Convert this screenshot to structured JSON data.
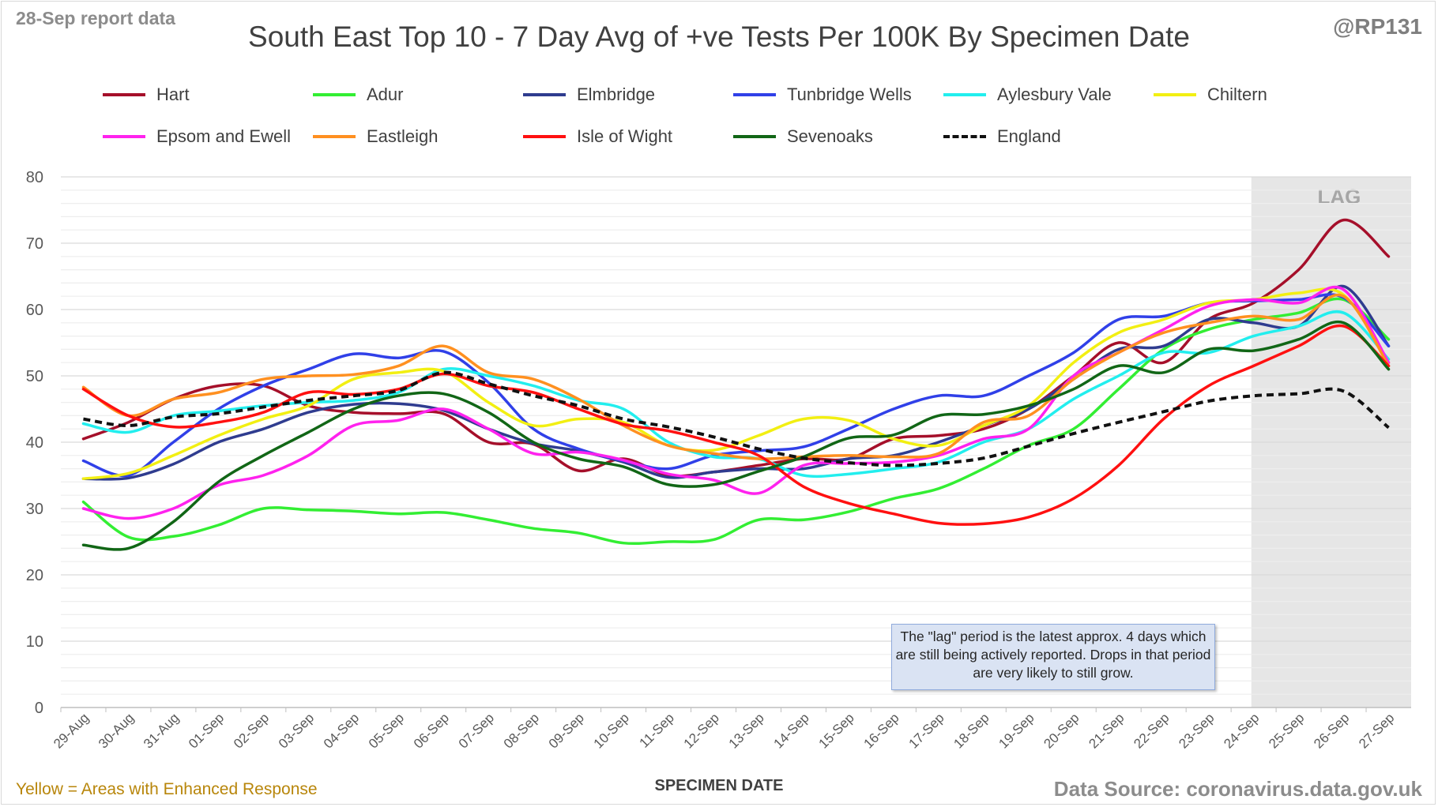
{
  "report_label": "28-Sep report data",
  "handle": "@RP131",
  "footnote": "Yellow = Areas with Enhanced Response",
  "source": "Data Source: coronavirus.data.gov.uk",
  "note": "The \"lag\" period is the latest approx. 4 days which are still being actively reported.  Drops in that period are very likely to still grow.",
  "chart_data": {
    "type": "line",
    "title": "South East Top 10 - 7 Day Avg of +ve Tests Per 100K By Specimen Date",
    "xlabel": "SPECIMEN DATE",
    "ylabel": "",
    "ylim": [
      0,
      80
    ],
    "yticks": [
      0,
      10,
      20,
      30,
      40,
      50,
      60,
      70,
      80
    ],
    "grid": true,
    "legend_placement": "top",
    "lag_label": "LAG",
    "lag_range": [
      "24-Sep",
      "27-Sep"
    ],
    "categories": [
      "29-Aug",
      "30-Aug",
      "31-Aug",
      "01-Sep",
      "02-Sep",
      "03-Sep",
      "04-Sep",
      "05-Sep",
      "06-Sep",
      "07-Sep",
      "08-Sep",
      "09-Sep",
      "10-Sep",
      "11-Sep",
      "12-Sep",
      "13-Sep",
      "14-Sep",
      "15-Sep",
      "16-Sep",
      "17-Sep",
      "18-Sep",
      "19-Sep",
      "20-Sep",
      "21-Sep",
      "22-Sep",
      "23-Sep",
      "24-Sep",
      "25-Sep",
      "26-Sep",
      "27-Sep"
    ],
    "series": [
      {
        "name": "Hart",
        "color": "#a50f2a",
        "dash": false,
        "values": [
          40.5,
          43,
          46.5,
          48.5,
          48.5,
          45.5,
          44.5,
          44.3,
          44.3,
          40,
          39.7,
          35.7,
          37.5,
          35,
          35.5,
          36.5,
          37.5,
          37.5,
          40.5,
          41,
          42,
          45,
          50,
          55,
          52,
          58.5,
          61,
          66,
          73.5,
          68
        ]
      },
      {
        "name": "Adur",
        "color": "#33ee33",
        "dash": false,
        "values": [
          31,
          25.7,
          25.8,
          27.5,
          30,
          29.8,
          29.6,
          29.2,
          29.4,
          28.3,
          27,
          26.3,
          24.8,
          25,
          25.3,
          28.3,
          28.3,
          29.5,
          31.5,
          33,
          36,
          39.5,
          42,
          48,
          54,
          57,
          58.5,
          59.5,
          61.5,
          55.5
        ]
      },
      {
        "name": "Elmbridge",
        "color": "#2f3c8f",
        "dash": false,
        "values": [
          34.5,
          34.6,
          36.7,
          40,
          42,
          44.5,
          45.7,
          45.8,
          44.8,
          42,
          39.8,
          38.7,
          37,
          34.7,
          35.5,
          36,
          36,
          37.5,
          38,
          40,
          42.5,
          45,
          49.5,
          54,
          54.5,
          58.5,
          58,
          57.5,
          63.5,
          54.5
        ]
      },
      {
        "name": "Tunbridge Wells",
        "color": "#3040e8",
        "dash": false,
        "values": [
          37.2,
          35,
          40,
          45,
          48.5,
          51,
          53.3,
          52.7,
          53.7,
          49,
          42,
          39,
          37.2,
          36,
          38,
          38.7,
          39.3,
          42,
          45,
          47,
          47,
          50,
          53.5,
          58.5,
          59,
          61,
          61.3,
          61.5,
          61.8,
          54.5
        ]
      },
      {
        "name": "Aylesbury Vale",
        "color": "#22eeee",
        "dash": false,
        "values": [
          42.8,
          41.5,
          44,
          44.7,
          45.5,
          46,
          46.3,
          47.5,
          51,
          50,
          48.5,
          46.3,
          45,
          40,
          37.8,
          37.5,
          35,
          35.2,
          36,
          37,
          40,
          42,
          46.5,
          50,
          53.5,
          53.5,
          56,
          57.5,
          59.5,
          52.5
        ]
      },
      {
        "name": "Chiltern",
        "color": "#f2ef12",
        "dash": false,
        "values": [
          34.5,
          35.3,
          38,
          41,
          43.5,
          45.5,
          49.5,
          50.5,
          50.7,
          46,
          42.5,
          43.5,
          43,
          39.5,
          38.8,
          41,
          43.5,
          43.3,
          40.5,
          39.5,
          42.5,
          45.5,
          52,
          56.5,
          58.5,
          61,
          61.5,
          62.5,
          62.2,
          52
        ]
      },
      {
        "name": "Epsom and Ewell",
        "color": "#ff22ee",
        "dash": false,
        "values": [
          30,
          28.5,
          30,
          33.5,
          35,
          38,
          42.5,
          43.3,
          45,
          42,
          38.3,
          38.5,
          37.3,
          35.2,
          34.3,
          32.3,
          36.5,
          36.8,
          37,
          38,
          40.5,
          42,
          50,
          53.5,
          57,
          60.5,
          61.5,
          61,
          63,
          52
        ]
      },
      {
        "name": "Eastleigh",
        "color": "#ff9020",
        "dash": false,
        "values": [
          48.3,
          44,
          46.5,
          47.5,
          49.5,
          50,
          50.2,
          51.5,
          54.5,
          50.5,
          49.5,
          46.5,
          42.5,
          39.5,
          38.3,
          37.5,
          37.8,
          38,
          37.8,
          38.3,
          43,
          44,
          49.5,
          53.5,
          56.5,
          58,
          59,
          58.5,
          62,
          51.5
        ]
      },
      {
        "name": "Isle of Wight",
        "color": "#ff1010",
        "dash": false,
        "values": [
          48,
          44,
          42.3,
          43,
          44.5,
          47.5,
          47.2,
          48,
          50.3,
          48.5,
          47.5,
          45,
          42.7,
          41.7,
          40,
          38,
          33.3,
          30.8,
          29.2,
          27.8,
          27.7,
          28.7,
          31.5,
          36.5,
          43.5,
          48.5,
          51.5,
          54.5,
          57.5,
          51.5
        ]
      },
      {
        "name": "Sevenoaks",
        "color": "#116616",
        "dash": false,
        "values": [
          24.5,
          24,
          28,
          34,
          38,
          41.5,
          45,
          47,
          47.3,
          44.5,
          40,
          37.5,
          36.3,
          33.6,
          33.6,
          35.6,
          37.8,
          40.6,
          41.1,
          44,
          44.2,
          45.5,
          48,
          51.5,
          50.5,
          54,
          53.8,
          55.5,
          58,
          51
        ]
      },
      {
        "name": "England",
        "color": "#111111",
        "dash": true,
        "values": [
          43.5,
          42.5,
          43.8,
          44.3,
          45.3,
          46.3,
          47,
          47.8,
          50.5,
          48.8,
          47,
          45.5,
          43.5,
          42.3,
          40.8,
          39,
          37.6,
          36.9,
          36.5,
          36.8,
          37.6,
          39.4,
          41.3,
          43,
          44.6,
          46.2,
          47,
          47.3,
          47.7,
          42.2
        ]
      }
    ]
  }
}
